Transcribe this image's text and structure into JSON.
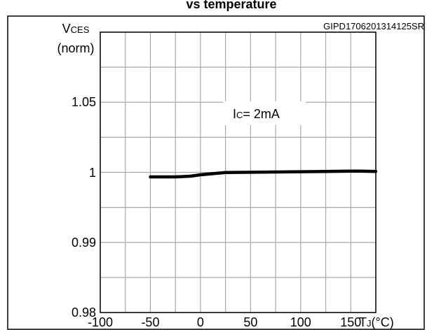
{
  "chart_data": {
    "type": "line",
    "title": "vs temperature",
    "code": "GIPD1706201314125SR",
    "ylabel_main": "V",
    "ylabel_sub": "CES",
    "ylabel_norm": "(norm)",
    "xlabel_main": "T",
    "xlabel_sub": "J",
    "xlabel_unit": "(°C)",
    "annotation_main": "I",
    "annotation_sub": "C",
    "annotation_rest": "= 2mA",
    "xlim": [
      -100,
      175
    ],
    "ylim": [
      0.98,
      1.05
    ],
    "x_ticks": [
      -100,
      -50,
      0,
      50,
      100,
      150
    ],
    "x_tick_labels": [
      "-100",
      "-50",
      "0",
      "50",
      "100",
      "150"
    ],
    "y_ticks": [
      0.98,
      0.99,
      1.0,
      1.05
    ],
    "y_tick_labels": [
      "0.98",
      "0.99",
      "1",
      "1.05"
    ],
    "grid": true,
    "series": [
      {
        "x": [
          -50,
          -25,
          -10,
          0,
          25,
          50,
          75,
          100,
          125,
          150,
          160,
          175
        ],
        "y": [
          0.9994,
          0.9994,
          0.9995,
          0.9997,
          1.0001,
          1.0003,
          1.0005,
          1.0007,
          1.0009,
          1.0011,
          1.0011,
          1.0009
        ]
      }
    ]
  }
}
